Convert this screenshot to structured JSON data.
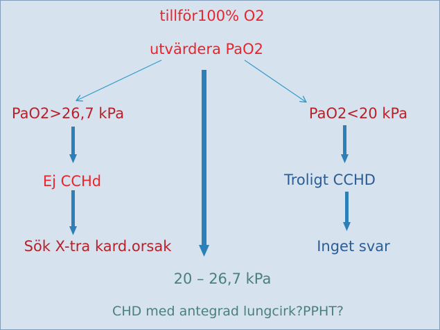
{
  "colors": {
    "background": "#d6e3ee",
    "red": "#e8242d",
    "dark_red": "#b8202a",
    "blue": "#2b5c93",
    "teal": "#4a7f7f",
    "arrow": "#3399cc",
    "arrow_thick": "#2d7fb8"
  },
  "nodes": {
    "give_o2": "tillför100% O2",
    "evaluate": "utvärdera PaO2",
    "high": "PaO2>26,7 kPa",
    "not_cchd": "Ej CCHd",
    "search_cause": "Sök X-tra kard.orsak",
    "low": "PaO2<20 kPa",
    "likely_cchd": "Troligt CCHD",
    "no_response": "Inget svar",
    "middle": "20 – 26,7 kPa",
    "conclusion": "CHD med antegrad lungcirk?PPHT?"
  }
}
